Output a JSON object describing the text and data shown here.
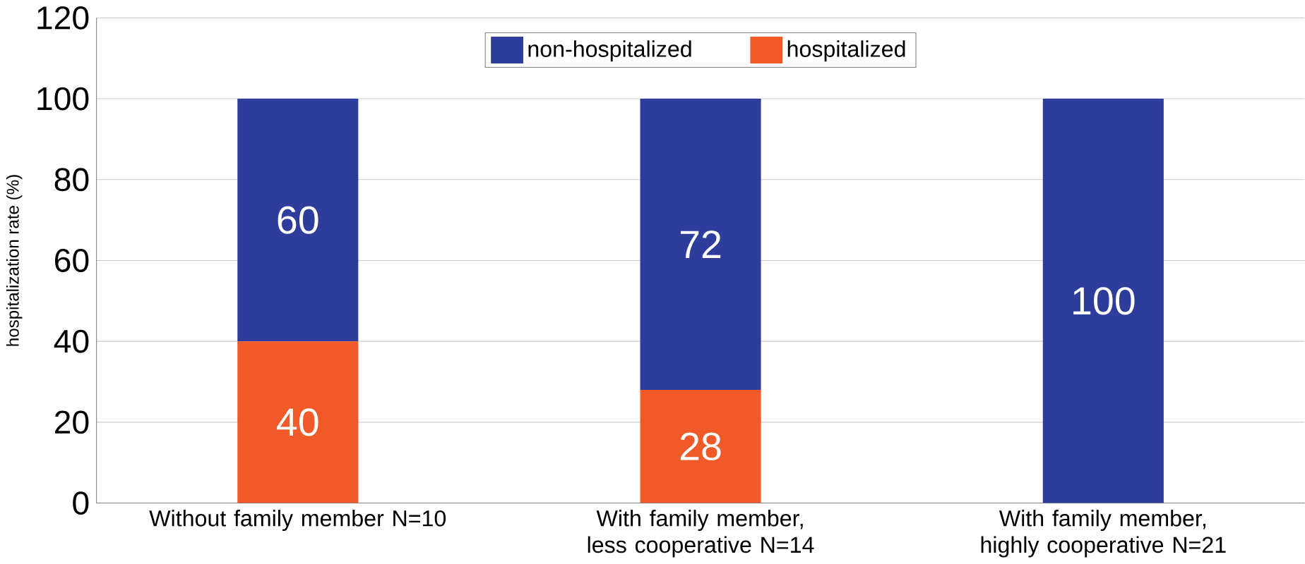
{
  "chart_data": {
    "type": "bar",
    "stacked": true,
    "ylabel": "hospitalization rate (%)",
    "categories": [
      "Without family member N=10",
      "With family member, less cooperative N=14",
      "With family member, highly cooperative N=21"
    ],
    "series": [
      {
        "name": "hospitalized",
        "color": "#f05a28",
        "values": [
          40,
          28,
          0
        ],
        "value_labels": [
          "40",
          "28",
          null
        ]
      },
      {
        "name": "non-hospitalized",
        "color": "#2e3c9c",
        "values": [
          60,
          72,
          100
        ],
        "value_labels": [
          "60",
          "72",
          "100"
        ]
      }
    ],
    "ylim": [
      0,
      120
    ],
    "yticks": [
      0,
      20,
      40,
      60,
      80,
      100,
      120
    ],
    "grid": "y",
    "legend": "top"
  }
}
